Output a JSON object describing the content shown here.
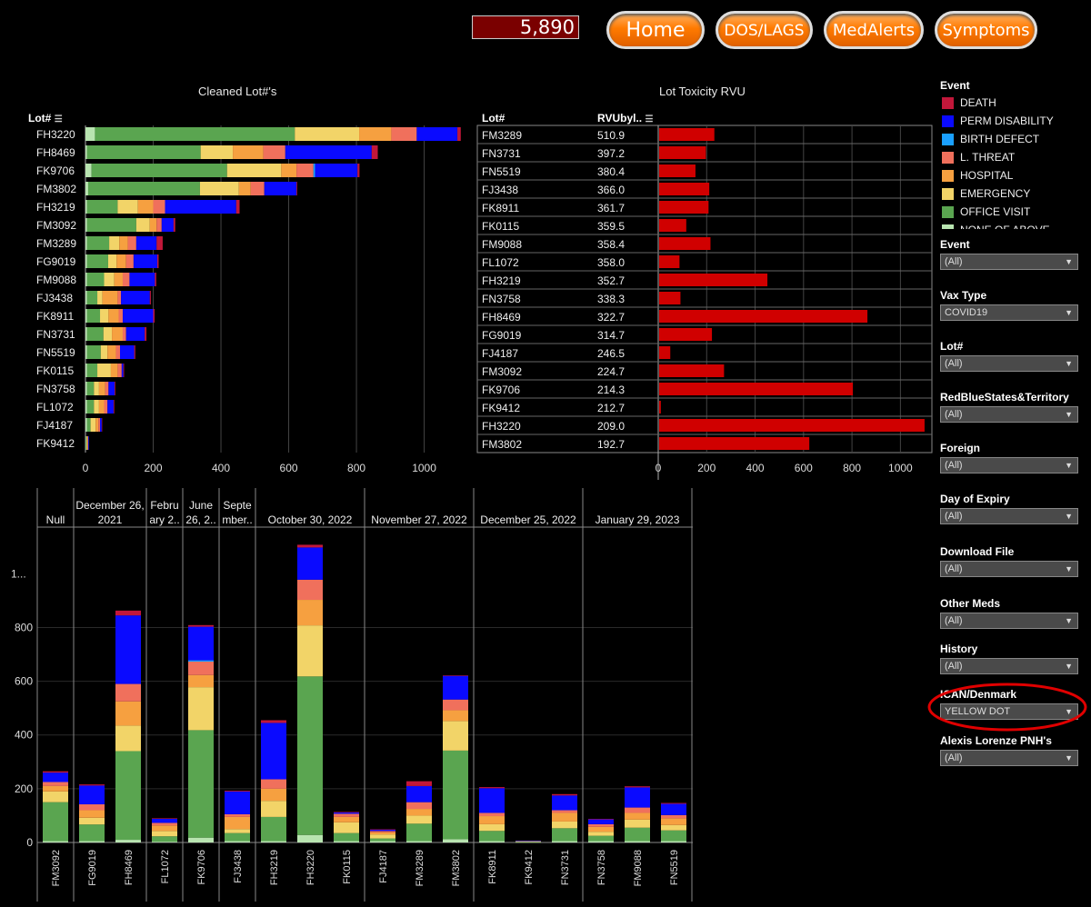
{
  "header": {
    "counter": "5,890",
    "nav": [
      {
        "label": "Home"
      },
      {
        "label": "DOS/LAGS"
      },
      {
        "label": "MedAlerts"
      },
      {
        "label": "Symptoms"
      }
    ]
  },
  "colors": {
    "DEATH": "#c2173a",
    "PERM DISABILITY": "#0a0aff",
    "BIRTH DEFECT": "#1aa0ff",
    "L. THREAT": "#f0705c",
    "HOSPITAL": "#f6a040",
    "EMERGENCY": "#f2d468",
    "OFFICE VISIT": "#5aa550",
    "NONE OF ABOVE": "#b8e4b0",
    "rvu_bar": "#d00000"
  },
  "legend": {
    "title": "Event",
    "items": [
      "DEATH",
      "PERM DISABILITY",
      "BIRTH DEFECT",
      "L. THREAT",
      "HOSPITAL",
      "EMERGENCY",
      "OFFICE VISIT",
      "NONE OF ABOVE"
    ]
  },
  "filters": [
    {
      "label": "Event",
      "value": "(All)"
    },
    {
      "label": "Vax Type",
      "value": "COVID19"
    },
    {
      "label": "Lot#",
      "value": "(All)"
    },
    {
      "label": "RedBlueStates&Territory",
      "value": "(All)"
    },
    {
      "label": "Foreign",
      "value": "(All)"
    },
    {
      "label": "Day of Expiry",
      "value": "(All)"
    },
    {
      "label": "Download File",
      "value": "(All)"
    },
    {
      "label": "Other Meds",
      "value": "(All)"
    },
    {
      "label": "History",
      "value": "(All)"
    },
    {
      "label": "ICAN/Denmark",
      "value": "YELLOW DOT"
    },
    {
      "label": "Alexis Lorenze PNH's",
      "value": "(All)"
    }
  ],
  "chart_data": [
    {
      "type": "bar",
      "orientation": "horizontal-stacked",
      "title": "Cleaned Lot#'s",
      "row_header": "Lot#",
      "xlim": [
        0,
        1130
      ],
      "xticks": [
        0,
        200,
        400,
        600,
        800,
        1000
      ],
      "stack_order": [
        "NONE OF ABOVE",
        "OFFICE VISIT",
        "EMERGENCY",
        "HOSPITAL",
        "L. THREAT",
        "BIRTH DEFECT",
        "PERM DISABILITY",
        "DEATH"
      ],
      "rows": [
        {
          "lot": "FH3220",
          "values": [
            28,
            590,
            190,
            95,
            75,
            0,
            120,
            10
          ]
        },
        {
          "lot": "FH8469",
          "values": [
            5,
            335,
            95,
            90,
            65,
            0,
            255,
            18
          ]
        },
        {
          "lot": "FK9706",
          "values": [
            18,
            400,
            160,
            45,
            50,
            5,
            125,
            6
          ]
        },
        {
          "lot": "FM3802",
          "values": [
            8,
            330,
            115,
            35,
            40,
            0,
            95,
            2
          ]
        },
        {
          "lot": "FH3219",
          "values": [
            5,
            90,
            60,
            45,
            35,
            0,
            210,
            10
          ]
        },
        {
          "lot": "FM3092",
          "values": [
            5,
            145,
            40,
            20,
            15,
            0,
            35,
            5
          ]
        },
        {
          "lot": "FM3289",
          "values": [
            5,
            65,
            30,
            25,
            25,
            0,
            60,
            18
          ]
        },
        {
          "lot": "FG9019",
          "values": [
            5,
            62,
            25,
            28,
            22,
            0,
            70,
            4
          ]
        },
        {
          "lot": "FM9088",
          "values": [
            5,
            50,
            30,
            25,
            20,
            0,
            75,
            4
          ]
        },
        {
          "lot": "FJ3438",
          "values": [
            5,
            30,
            15,
            45,
            10,
            0,
            85,
            3
          ]
        },
        {
          "lot": "FK8911",
          "values": [
            5,
            38,
            25,
            30,
            12,
            0,
            90,
            4
          ]
        },
        {
          "lot": "FN3731",
          "values": [
            5,
            48,
            25,
            32,
            10,
            0,
            55,
            5
          ]
        },
        {
          "lot": "FN5519",
          "values": [
            5,
            40,
            20,
            25,
            12,
            0,
            42,
            3
          ]
        },
        {
          "lot": "FK0115",
          "values": [
            5,
            30,
            40,
            20,
            12,
            0,
            5,
            2
          ]
        },
        {
          "lot": "FN3758",
          "values": [
            5,
            20,
            15,
            18,
            10,
            0,
            18,
            2
          ]
        },
        {
          "lot": "FL1072",
          "values": [
            5,
            20,
            15,
            15,
            10,
            0,
            18,
            2
          ]
        },
        {
          "lot": "FJ4187",
          "values": [
            5,
            10,
            15,
            8,
            5,
            0,
            5,
            1
          ]
        },
        {
          "lot": "FK9412",
          "values": [
            1,
            2,
            2,
            2,
            1,
            0,
            2,
            0
          ]
        }
      ]
    },
    {
      "type": "bar",
      "orientation": "horizontal",
      "title": "Lot Toxicity RVU",
      "col_headers": [
        "Lot#",
        "RVUbyl.."
      ],
      "xlim": [
        0,
        1130
      ],
      "xticks": [
        0,
        200,
        400,
        600,
        800,
        1000
      ],
      "rows": [
        {
          "lot": "FM3289",
          "rvu": "510.9",
          "value": 228
        },
        {
          "lot": "FN3731",
          "rvu": "397.2",
          "value": 193
        },
        {
          "lot": "FN5519",
          "rvu": "380.4",
          "value": 150
        },
        {
          "lot": "FJ3438",
          "rvu": "366.0",
          "value": 207
        },
        {
          "lot": "FK8911",
          "rvu": "361.7",
          "value": 204
        },
        {
          "lot": "FK0115",
          "rvu": "359.5",
          "value": 112
        },
        {
          "lot": "FM9088",
          "rvu": "358.4",
          "value": 212
        },
        {
          "lot": "FL1072",
          "rvu": "358.0",
          "value": 84
        },
        {
          "lot": "FH3219",
          "rvu": "352.7",
          "value": 447
        },
        {
          "lot": "FN3758",
          "rvu": "338.3",
          "value": 88
        },
        {
          "lot": "FH8469",
          "rvu": "322.7",
          "value": 860
        },
        {
          "lot": "FG9019",
          "rvu": "314.7",
          "value": 218
        },
        {
          "lot": "FJ4187",
          "rvu": "246.5",
          "value": 46
        },
        {
          "lot": "FM3092",
          "rvu": "224.7",
          "value": 268
        },
        {
          "lot": "FK9706",
          "rvu": "214.3",
          "value": 800
        },
        {
          "lot": "FK9412",
          "rvu": "212.7",
          "value": 7
        },
        {
          "lot": "FH3220",
          "rvu": "209.0",
          "value": 1096
        },
        {
          "lot": "FM3802",
          "rvu": "192.7",
          "value": 620
        }
      ]
    },
    {
      "type": "bar",
      "orientation": "vertical-stacked",
      "title": "",
      "ylim": [
        0,
        1150
      ],
      "yticks": [
        0,
        200,
        400,
        600,
        800
      ],
      "ytick_top_label": "1...",
      "ytick_top_value": 1000,
      "groups": [
        {
          "label": "Null",
          "lots": [
            "FM3092"
          ]
        },
        {
          "label": "December 26, 2021",
          "lots": [
            "FG9019",
            "FH8469"
          ]
        },
        {
          "label": "Febru ary 2..",
          "lots": [
            "FL1072"
          ]
        },
        {
          "label": "June 26, 2..",
          "lots": [
            "FK9706"
          ]
        },
        {
          "label": "Septe mber..",
          "lots": [
            "FJ3438"
          ]
        },
        {
          "label": "October 30, 2022",
          "lots": [
            "FH3219",
            "FH3220",
            "FK0115"
          ]
        },
        {
          "label": "November 27, 2022",
          "lots": [
            "FJ4187",
            "FM3289",
            "FM3802"
          ]
        },
        {
          "label": "December 25, 2022",
          "lots": [
            "FK8911",
            "FK9412",
            "FN3731"
          ]
        },
        {
          "label": "January 29, 2023",
          "lots": [
            "FN3758",
            "FM9088",
            "FN5519"
          ]
        }
      ],
      "stack_order": [
        "NONE OF ABOVE",
        "OFFICE VISIT",
        "EMERGENCY",
        "HOSPITAL",
        "L. THREAT",
        "BIRTH DEFECT",
        "PERM DISABILITY",
        "DEATH"
      ],
      "bars": {
        "FM3092": [
          5,
          145,
          40,
          20,
          15,
          0,
          35,
          5
        ],
        "FG9019": [
          5,
          62,
          25,
          28,
          22,
          0,
          70,
          4
        ],
        "FH8469": [
          10,
          330,
          95,
          90,
          65,
          0,
          255,
          18
        ],
        "FL1072": [
          3,
          20,
          20,
          20,
          10,
          0,
          15,
          2
        ],
        "FK9706": [
          18,
          400,
          160,
          45,
          50,
          5,
          125,
          6
        ],
        "FJ3438": [
          5,
          30,
          15,
          45,
          10,
          0,
          85,
          3
        ],
        "FH3219": [
          5,
          90,
          60,
          45,
          35,
          0,
          210,
          10
        ],
        "FH3220": [
          28,
          590,
          190,
          95,
          75,
          0,
          120,
          10
        ],
        "FK0115": [
          5,
          30,
          40,
          20,
          12,
          0,
          5,
          2
        ],
        "FJ4187": [
          5,
          10,
          15,
          8,
          5,
          0,
          5,
          1
        ],
        "FM3289": [
          5,
          65,
          30,
          25,
          25,
          0,
          60,
          18
        ],
        "FM3802": [
          12,
          330,
          110,
          40,
          40,
          0,
          88,
          2
        ],
        "FK8911": [
          5,
          38,
          25,
          30,
          12,
          0,
          92,
          4
        ],
        "FK9412": [
          1,
          2,
          1,
          1,
          0,
          0,
          2,
          0
        ],
        "FN3731": [
          5,
          48,
          25,
          32,
          10,
          0,
          55,
          5
        ],
        "FN3758": [
          5,
          20,
          15,
          18,
          10,
          0,
          18,
          2
        ],
        "FM9088": [
          5,
          50,
          30,
          25,
          20,
          0,
          75,
          4
        ],
        "FN5519": [
          5,
          40,
          20,
          25,
          12,
          0,
          42,
          3
        ]
      }
    }
  ]
}
